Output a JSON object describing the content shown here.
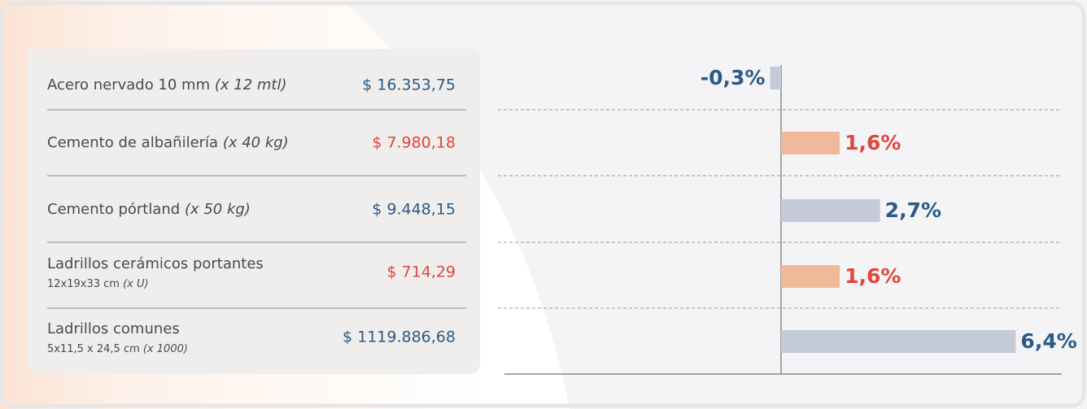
{
  "table": {
    "rows": [
      {
        "name": "Acero nervado 10 mm ",
        "unit": "(x 12 mtl)",
        "price": "$ 16.353,75",
        "color": "#2b5a86"
      },
      {
        "name": "Cemento de albañilería ",
        "unit": "(x 40 kg)",
        "price": "$ 7.980,18",
        "color": "#e0463b"
      },
      {
        "name": "Cemento pórtland ",
        "unit": "(x 50 kg)",
        "price": "$ 9.448,15",
        "color": "#2b5a86"
      },
      {
        "name": "Ladrillos cerámicos portantes",
        "detail": "12x19x33 cm ",
        "detail_unit": "(x U)",
        "price": "$ 714,29",
        "color": "#e0463b"
      },
      {
        "name": "Ladrillos comunes",
        "detail": "5x11,5 x 24,5 cm ",
        "detail_unit": "(x 1000)",
        "price": "$ 1119.886,68",
        "color": "#2b5a86"
      }
    ]
  },
  "chart_data": {
    "type": "hbar",
    "values": [
      -0.3,
      1.6,
      2.7,
      1.6,
      6.4
    ],
    "value_labels": [
      "-0,3%",
      "1,6%",
      "2,7%",
      "1,6%",
      "6,4%"
    ],
    "colors": [
      "#c5cad9",
      "#f0b99a",
      "#c5cad9",
      "#f0b99a",
      "#c5cad9"
    ],
    "label_colors": [
      "#2b5a86",
      "#e0463b",
      "#2b5a86",
      "#e0463b",
      "#2b5a86"
    ],
    "xlim": [
      -7.5,
      7.5
    ]
  }
}
